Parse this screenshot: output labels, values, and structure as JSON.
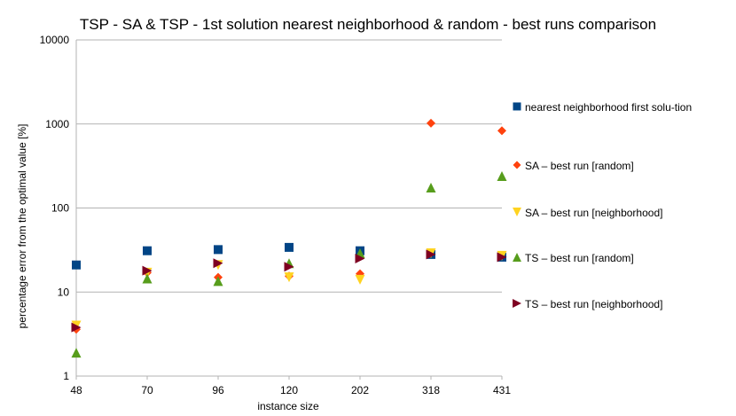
{
  "chart_data": {
    "type": "scatter",
    "title": "TSP - SA & TSP - 1st solution nearest neighborhood & random  - best runs comparison",
    "xlabel": "instance size",
    "ylabel": "percentage error from the optimal value [%]",
    "yscale": "log",
    "ylim": [
      1,
      10000
    ],
    "yticks": [
      "1",
      "10",
      "100",
      "1000",
      "10000"
    ],
    "categories": [
      "48",
      "70",
      "96",
      "120",
      "202",
      "318",
      "431"
    ],
    "grid": "horizontal",
    "legend_position": "right",
    "series": [
      {
        "name": "nearest neighborhood first solu-tion",
        "marker": "square",
        "color": "#004586",
        "values": [
          21,
          31,
          32,
          34,
          31,
          28,
          26
        ]
      },
      {
        "name": "SA – best run [random]",
        "marker": "diamond",
        "color": "#ff420e",
        "values": [
          3.6,
          17,
          15,
          15.5,
          16.5,
          1020,
          830
        ]
      },
      {
        "name": "SA – best run [neighborhood]",
        "marker": "triangle-down",
        "color": "#ffd320",
        "values": [
          4,
          17,
          21,
          15,
          14,
          29,
          27
        ]
      },
      {
        "name": "TS – best run [random]",
        "marker": "triangle-up",
        "color": "#579d1c",
        "values": [
          1.9,
          14.5,
          13.5,
          22,
          29,
          175,
          240
        ]
      },
      {
        "name": "TS – best run [neighborhood]",
        "marker": "triangle-right",
        "color": "#7e0021",
        "values": [
          3.8,
          18,
          22,
          20,
          25,
          28,
          26
        ]
      }
    ]
  }
}
